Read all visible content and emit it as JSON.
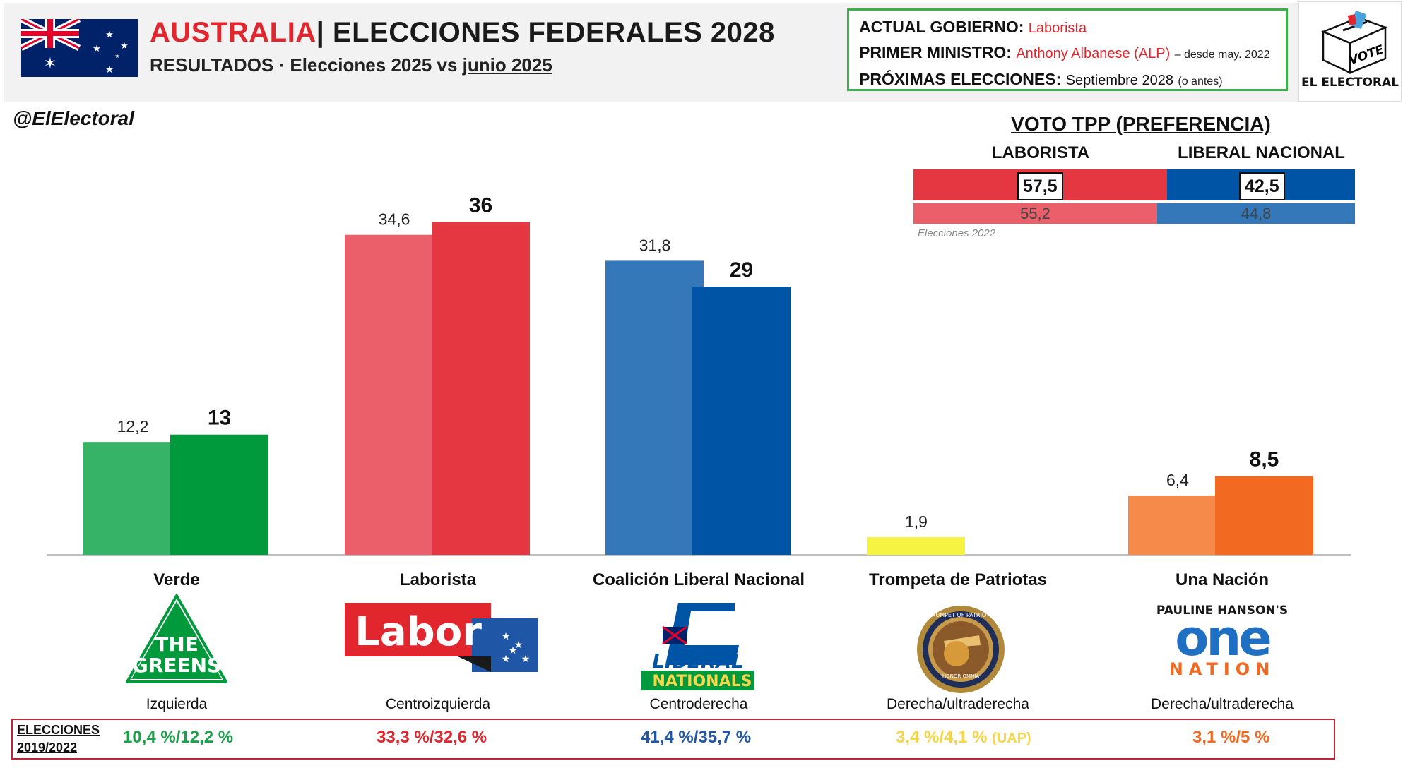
{
  "header": {
    "country": "AUSTRALIA",
    "title_rest": "| ELECCIONES FEDERALES 2028",
    "subtitle_prefix": "RESULTADOS · Elecciones 2025 vs ",
    "subtitle_date": "junio 2025"
  },
  "info": {
    "gov_label": "ACTUAL GOBIERNO:",
    "gov_value": "Laborista",
    "pm_label": "PRIMER MINISTRO:",
    "pm_value": "Anthony Albanese (ALP)",
    "pm_since": "– desde may. 2022",
    "next_label": "PRÓXIMAS ELECCIONES:",
    "next_value": "Septiembre 2028",
    "next_note": "(o antes)"
  },
  "brand": {
    "label": "EL ELECTORAL",
    "box_text": "VOTE",
    "handle": "@ElElectoral"
  },
  "colors": {
    "verde": "#009a3c",
    "verde_light": "#36b366",
    "laborista": "#e43741",
    "laborista_light": "#ea5f69",
    "coalicion": "#0054a6",
    "coalicion_light": "#3578ba",
    "trompeta": "#f7f342",
    "una_nacion": "#f26a21",
    "una_nacion_light": "#f58a4b"
  },
  "tpp": {
    "title": "VOTO TPP (PREFERENCIA)",
    "left_label": "LABORISTA",
    "right_label": "LIBERAL NACIONAL",
    "current": [
      57.5,
      42.5
    ],
    "current_text": [
      "57,5",
      "42,5"
    ],
    "previous": [
      55.2,
      44.8
    ],
    "previous_text": [
      "55,2",
      "44,8"
    ],
    "note": "Elecciones 2022"
  },
  "chart_data": {
    "type": "bar",
    "categories": [
      "Verde",
      "Laborista",
      "Coalición Liberal Nacional",
      "Trompeta de Patriotas",
      "Una Nación"
    ],
    "series": [
      {
        "name": "Elecciones 2025",
        "values": [
          12.2,
          34.6,
          31.8,
          1.9,
          6.4
        ],
        "labels": [
          "12,2",
          "34,6",
          "31,8",
          "1,9",
          "6,4"
        ]
      },
      {
        "name": "junio 2025",
        "values": [
          13,
          36,
          29,
          null,
          8.5
        ],
        "labels": [
          "13",
          "36",
          "29",
          "",
          "8,5"
        ]
      }
    ],
    "ylim": [
      0,
      40
    ],
    "ideology": [
      "Izquierda",
      "Centroizquierda",
      "Centroderecha",
      "Derecha/ultraderecha",
      "Derecha/ultraderecha"
    ]
  },
  "previous": {
    "label": "ELECCIONES 2019/2022",
    "values": [
      "10,4 %/12,2 %",
      "33,3 %/32,6 %",
      "41,4 %/35,7 %",
      "3,4 %/4,1 %",
      "3,1 %/5 %"
    ],
    "extra": "(UAP)",
    "colors": [
      "#1aa14b",
      "#e1262d",
      "#1f56a6",
      "#f7d54a",
      "#f26a21"
    ]
  },
  "logos": {
    "greens_line1": "THE",
    "greens_line2": "GREENS",
    "labor": "Labor",
    "liberal": "LIBERAL",
    "nationals": "NATIONALS",
    "trumpet_ring": "TRUMPET OF PATRIOTS",
    "trumpet_inner": "HONOR OMNIA",
    "onenation_top": "PAULINE HANSON'S",
    "onenation_main": "one",
    "onenation_sub": "NATION"
  }
}
